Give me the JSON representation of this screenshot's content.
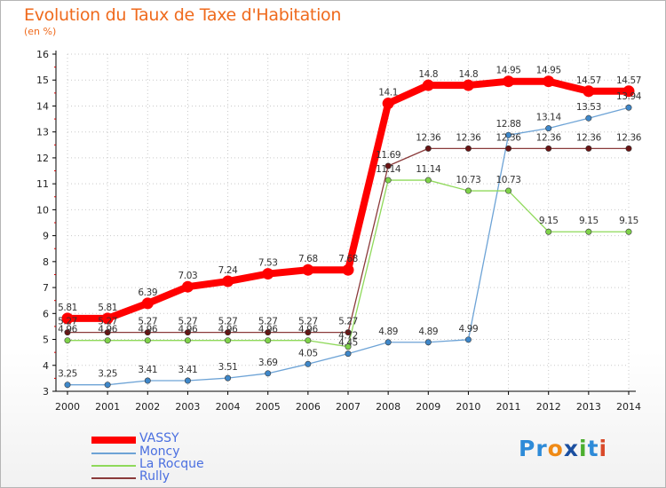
{
  "title": "Evolution du Taux de Taxe d'Habitation",
  "subtitle": "(en %)",
  "logo": {
    "text": "Proxiti",
    "letters": [
      "P",
      "r",
      "o",
      "x",
      "i",
      "t",
      "i"
    ],
    "colors": [
      "#2e8bd8",
      "#2e8bd8",
      "#ef8a16",
      "#1b4fa0",
      "#4cae2f",
      "#2e8bd8",
      "#d94a2a"
    ]
  },
  "chart_data": {
    "type": "line",
    "x": [
      2000,
      2001,
      2002,
      2003,
      2004,
      2005,
      2006,
      2007,
      2008,
      2009,
      2010,
      2011,
      2012,
      2013,
      2014
    ],
    "ylim": [
      3,
      16
    ],
    "yticks": [
      3,
      4,
      5,
      6,
      7,
      8,
      9,
      10,
      11,
      12,
      13,
      14,
      15,
      16
    ],
    "xlabel": "",
    "ylabel": "",
    "legend_position": "bottom-left",
    "series": [
      {
        "name": "VASSY",
        "color": "#ff0000",
        "width": 8,
        "marker_fill": "#ff0000",
        "values": [
          5.81,
          5.81,
          6.39,
          7.03,
          7.24,
          7.53,
          7.68,
          7.68,
          14.1,
          14.8,
          14.8,
          14.95,
          14.95,
          14.57,
          14.57
        ],
        "labels": [
          "5.81",
          "5.81",
          "6.39",
          "7.03",
          "7.24",
          "7.53",
          "7.68",
          "7.68",
          "14.1",
          "14.8",
          "14.8",
          "14.95",
          "14.95",
          "14.57",
          "14.57"
        ]
      },
      {
        "name": "Moncy",
        "color": "#6da3d6",
        "width": 1.3,
        "marker_fill": "#3e87c9",
        "values": [
          3.25,
          3.25,
          3.41,
          3.41,
          3.51,
          3.69,
          4.05,
          4.45,
          4.89,
          4.89,
          4.99,
          12.88,
          13.14,
          13.53,
          13.94
        ],
        "labels": [
          "3.25",
          "3.25",
          "3.41",
          "3.41",
          "3.51",
          "3.69",
          "4.05",
          "4.45",
          "4.89",
          "4.89",
          "4.99",
          "12.88",
          "13.14",
          "13.53",
          "13.94"
        ]
      },
      {
        "name": "La Rocque",
        "color": "#8fd95a",
        "width": 1.3,
        "marker_fill": "#7fd24a",
        "values": [
          4.96,
          4.96,
          4.96,
          4.96,
          4.96,
          4.96,
          4.96,
          4.72,
          11.14,
          11.14,
          10.73,
          10.73,
          9.15,
          9.15,
          9.15
        ],
        "labels": [
          "4.96",
          "4.96",
          "4.96",
          "4.96",
          "4.96",
          "4.96",
          "4.96",
          "4.72",
          "11.14",
          "11.14",
          "10.73",
          "10.73",
          "9.15",
          "9.15",
          "9.15"
        ]
      },
      {
        "name": "Rully",
        "color": "#8a3a3a",
        "width": 1.3,
        "marker_fill": "#6a1414",
        "values": [
          5.27,
          5.27,
          5.27,
          5.27,
          5.27,
          5.27,
          5.27,
          5.27,
          11.69,
          12.36,
          12.36,
          12.36,
          12.36,
          12.36,
          12.36
        ],
        "labels": [
          "5.27",
          "5.27",
          "5.27",
          "5.27",
          "5.27",
          "5.27",
          "5.27",
          "5.27",
          "11.69",
          "12.36",
          "12.36",
          "12.36",
          "12.36",
          "12.36",
          "12.36"
        ]
      }
    ]
  }
}
